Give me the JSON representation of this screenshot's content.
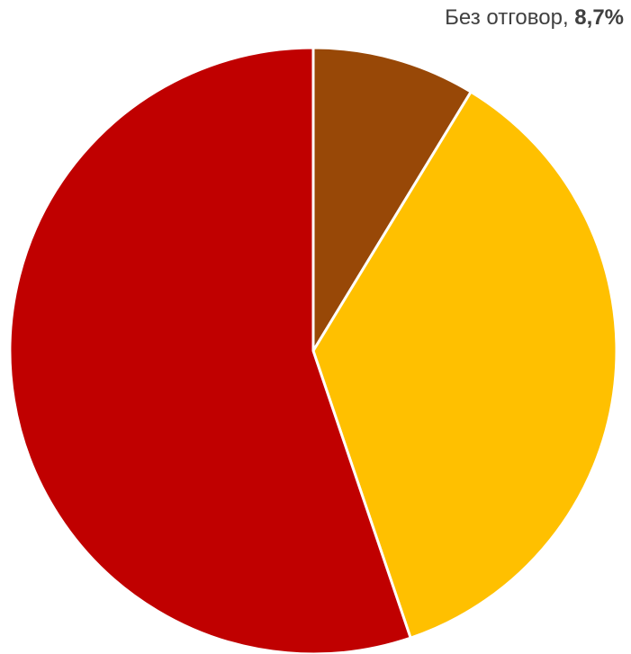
{
  "chart_data": {
    "type": "pie",
    "start_angle_deg": 0,
    "direction": "clockwise",
    "slices": [
      {
        "label": "Без отговор",
        "value": 8.7,
        "value_label": "8,7%",
        "color": "#984807",
        "show_label": true
      },
      {
        "value": 36.1,
        "color": "#FFC000",
        "show_label": false
      },
      {
        "value": 55.2,
        "color": "#C00000",
        "show_label": false
      }
    ],
    "border_color": "#FFFFFF"
  }
}
